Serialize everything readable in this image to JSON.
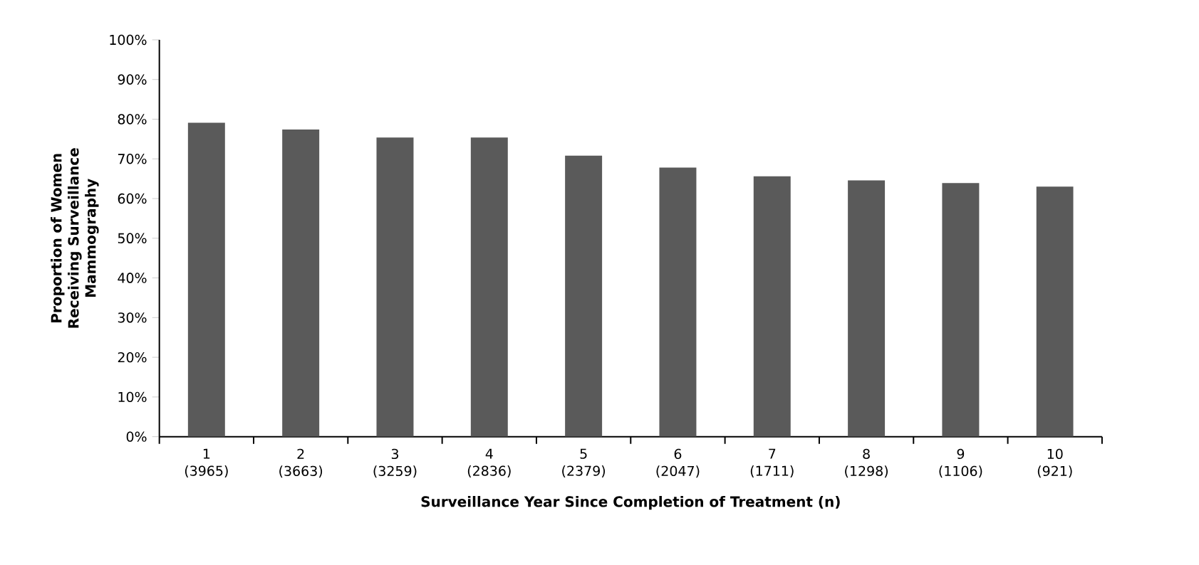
{
  "chart_data": {
    "type": "bar",
    "xlabel": "Surveillance Year Since Completion of Treatment (n)",
    "ylabel": "Proportion of Women Receiving Surveillance Mammography",
    "categories": [
      "1 (3965)",
      "2 (3663)",
      "3 (3259)",
      "4 (2836)",
      "5 (2379)",
      "6 (2047)",
      "7 (1711)",
      "8 (1298)",
      "9 (1106)",
      "10 (921)"
    ],
    "values": [
      79.1,
      77.4,
      75.4,
      75.4,
      70.8,
      67.8,
      65.6,
      64.6,
      63.9,
      63.0
    ],
    "color": "#5a5a5a",
    "ylim": [
      0,
      100
    ],
    "yticks": [
      {
        "value": 0,
        "label": "0%"
      },
      {
        "value": 10,
        "label": "10%"
      },
      {
        "value": 20,
        "label": "20%"
      },
      {
        "value": 30,
        "label": "30%"
      },
      {
        "value": 40,
        "label": "40%"
      },
      {
        "value": 50,
        "label": "50%"
      },
      {
        "value": 60,
        "label": "60%"
      },
      {
        "value": 70,
        "label": "70%"
      },
      {
        "value": 80,
        "label": "80%"
      },
      {
        "value": 90,
        "label": "90%"
      },
      {
        "value": 100,
        "label": "100%"
      }
    ]
  }
}
